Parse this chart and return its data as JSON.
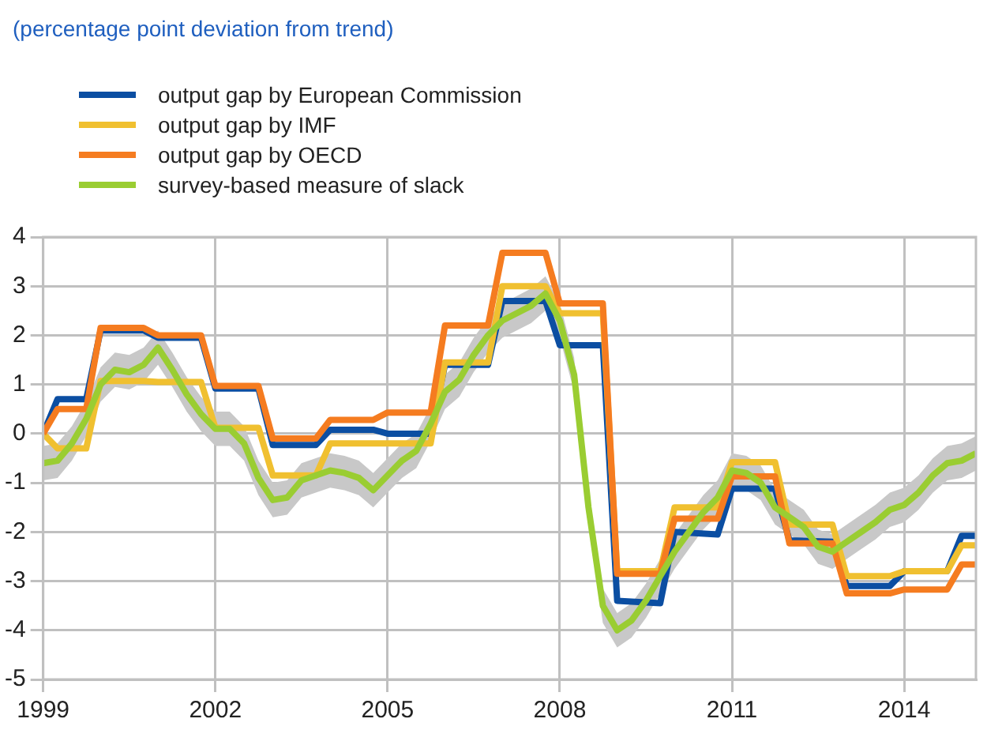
{
  "chart_data": {
    "type": "line",
    "title": "(percentage point deviation from trend)",
    "legend": "top left",
    "grid": true,
    "marker": "none",
    "line_style": "solid",
    "xlim": [
      1999,
      2015.25
    ],
    "xticks": [
      1999,
      2002,
      2005,
      2008,
      2011,
      2014
    ],
    "ylim": [
      -5,
      4
    ],
    "yticks": [
      -5,
      -4,
      -3,
      -2,
      -1,
      0,
      1,
      2,
      3,
      4
    ],
    "series": [
      {
        "name": "output gap by European Commission",
        "color": "#0b4ea2",
        "x": [
          1999,
          1999.25,
          1999.75,
          2000,
          2000.75,
          2001,
          2001.75,
          2002,
          2002.75,
          2003,
          2003.75,
          2004,
          2004.75,
          2005,
          2005.75,
          2006,
          2006.75,
          2007,
          2007.75,
          2008,
          2008.75,
          2009,
          2009.75,
          2010,
          2010.75,
          2011,
          2011.75,
          2012,
          2012.75,
          2013,
          2013.75,
          2014,
          2014.75,
          2015,
          2015.25
        ],
        "values": [
          0,
          0.7,
          0.7,
          2.1,
          2.1,
          1.95,
          1.95,
          0.92,
          0.92,
          -0.23,
          -0.23,
          0.08,
          0.08,
          0,
          0,
          1.4,
          1.4,
          2.7,
          2.7,
          1.8,
          1.8,
          -3.4,
          -3.45,
          -2.0,
          -2.05,
          -1.12,
          -1.12,
          -2.17,
          -2.2,
          -3.1,
          -3.1,
          -2.8,
          -2.8,
          -2.08,
          -2.08
        ]
      },
      {
        "name": "output gap by IMF",
        "color": "#f0c030",
        "x": [
          1999,
          1999.25,
          1999.75,
          2000,
          2000.75,
          2001,
          2001.75,
          2002,
          2002.75,
          2003,
          2003.75,
          2004,
          2004.75,
          2005,
          2005.75,
          2006,
          2006.75,
          2007,
          2007.75,
          2008,
          2008.75,
          2009,
          2009.75,
          2010,
          2010.75,
          2011,
          2011.75,
          2012,
          2012.75,
          2013,
          2013.75,
          2014,
          2014.75,
          2015,
          2015.25
        ],
        "values": [
          0,
          -0.3,
          -0.3,
          1.07,
          1.07,
          1.05,
          1.05,
          0.12,
          0.12,
          -0.85,
          -0.85,
          -0.2,
          -0.2,
          -0.2,
          -0.2,
          1.45,
          1.45,
          3.0,
          3.0,
          2.45,
          2.45,
          -2.8,
          -2.8,
          -1.5,
          -1.5,
          -0.58,
          -0.58,
          -1.85,
          -1.85,
          -2.9,
          -2.9,
          -2.8,
          -2.8,
          -2.27,
          -2.27
        ]
      },
      {
        "name": "output gap by OECD",
        "color": "#f57c20",
        "x": [
          1999,
          1999.25,
          1999.75,
          2000,
          2000.75,
          2001,
          2001.75,
          2002,
          2002.75,
          2003,
          2003.75,
          2004,
          2004.75,
          2005,
          2005.75,
          2006,
          2006.75,
          2007,
          2007.75,
          2008,
          2008.75,
          2009,
          2009.75,
          2010,
          2010.75,
          2011,
          2011.75,
          2012,
          2012.75,
          2013,
          2013.75,
          2014,
          2014.75,
          2015,
          2015.25
        ],
        "values": [
          0,
          0.5,
          0.5,
          2.15,
          2.15,
          2.0,
          2.0,
          0.97,
          0.97,
          -0.1,
          -0.1,
          0.28,
          0.28,
          0.43,
          0.43,
          2.2,
          2.2,
          3.68,
          3.68,
          2.65,
          2.65,
          -2.85,
          -2.85,
          -1.73,
          -1.73,
          -0.87,
          -0.87,
          -2.23,
          -2.23,
          -3.25,
          -3.25,
          -3.17,
          -3.17,
          -2.66,
          -2.66
        ]
      },
      {
        "name": "survey-based measure of slack",
        "color": "#9acd32",
        "x": [
          1999,
          1999.25,
          1999.5,
          1999.75,
          2000,
          2000.25,
          2000.5,
          2000.75,
          2001,
          2001.25,
          2001.5,
          2001.75,
          2002,
          2002.25,
          2002.5,
          2002.75,
          2003,
          2003.25,
          2003.5,
          2003.75,
          2004,
          2004.25,
          2004.5,
          2004.75,
          2005,
          2005.25,
          2005.5,
          2005.75,
          2006,
          2006.25,
          2006.5,
          2006.75,
          2007,
          2007.25,
          2007.5,
          2007.75,
          2008,
          2008.25,
          2008.5,
          2008.75,
          2009,
          2009.25,
          2009.5,
          2009.75,
          2010,
          2010.25,
          2010.5,
          2010.75,
          2011,
          2011.25,
          2011.5,
          2011.75,
          2012,
          2012.25,
          2012.5,
          2012.75,
          2013,
          2013.25,
          2013.5,
          2013.75,
          2014,
          2014.25,
          2014.5,
          2014.75,
          2015,
          2015.25
        ],
        "values": [
          -0.6,
          -0.55,
          -0.2,
          0.3,
          1.0,
          1.3,
          1.25,
          1.4,
          1.75,
          1.3,
          0.8,
          0.4,
          0.1,
          0.1,
          -0.2,
          -0.9,
          -1.35,
          -1.3,
          -0.95,
          -0.85,
          -0.75,
          -0.8,
          -0.9,
          -1.15,
          -0.85,
          -0.55,
          -0.35,
          0.2,
          0.85,
          1.1,
          1.6,
          2.0,
          2.3,
          2.45,
          2.6,
          2.85,
          2.3,
          1.2,
          -1.5,
          -3.5,
          -4.0,
          -3.8,
          -3.4,
          -2.9,
          -2.4,
          -2.0,
          -1.6,
          -1.3,
          -0.75,
          -0.8,
          -1.0,
          -1.5,
          -1.7,
          -1.9,
          -2.3,
          -2.4,
          -2.2,
          -2.0,
          -1.8,
          -1.55,
          -1.45,
          -1.2,
          -0.85,
          -0.6,
          -0.55,
          -0.4
        ],
        "lower": [
          -0.95,
          -0.9,
          -0.55,
          -0.05,
          0.65,
          0.95,
          0.9,
          1.05,
          1.4,
          0.95,
          0.45,
          0.05,
          -0.25,
          -0.25,
          -0.55,
          -1.25,
          -1.7,
          -1.65,
          -1.3,
          -1.2,
          -1.1,
          -1.15,
          -1.25,
          -1.5,
          -1.2,
          -0.9,
          -0.7,
          -0.15,
          0.5,
          0.75,
          1.25,
          1.65,
          1.95,
          2.1,
          2.25,
          2.5,
          1.95,
          0.85,
          -1.85,
          -3.85,
          -4.35,
          -4.15,
          -3.75,
          -3.25,
          -2.75,
          -2.35,
          -1.95,
          -1.65,
          -1.1,
          -1.15,
          -1.35,
          -1.85,
          -2.05,
          -2.25,
          -2.65,
          -2.75,
          -2.55,
          -2.35,
          -2.15,
          -1.9,
          -1.8,
          -1.55,
          -1.2,
          -0.95,
          -0.9,
          -0.75
        ],
        "upper": [
          -0.25,
          -0.2,
          0.15,
          0.65,
          1.35,
          1.65,
          1.6,
          1.75,
          2.1,
          1.65,
          1.15,
          0.75,
          0.45,
          0.45,
          0.15,
          -0.55,
          -1.0,
          -0.95,
          -0.6,
          -0.5,
          -0.4,
          -0.45,
          -0.55,
          -0.8,
          -0.5,
          -0.2,
          0.0,
          0.55,
          1.2,
          1.45,
          1.95,
          2.35,
          2.65,
          2.8,
          2.95,
          3.2,
          2.65,
          1.55,
          -1.15,
          -3.15,
          -3.65,
          -3.45,
          -3.05,
          -2.55,
          -2.05,
          -1.65,
          -1.25,
          -0.95,
          -0.4,
          -0.45,
          -0.65,
          -1.15,
          -1.35,
          -1.55,
          -1.95,
          -2.05,
          -1.85,
          -1.65,
          -1.45,
          -1.2,
          -1.1,
          -0.85,
          -0.5,
          -0.25,
          -0.2,
          -0.05
        ]
      }
    ]
  }
}
